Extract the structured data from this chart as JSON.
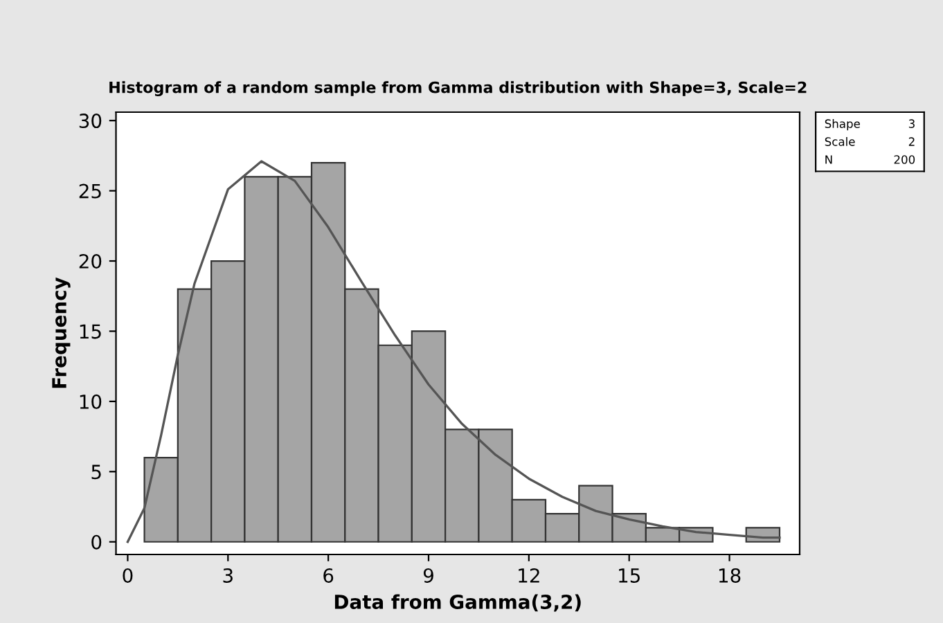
{
  "chart_data": {
    "type": "histogram",
    "title": "Histogram of a random sample from Gamma distribution with Shape=3, Scale=2",
    "xlabel": "Data from Gamma(3,2)",
    "ylabel": "Frequency",
    "bins": [
      0.5,
      1.5,
      2.5,
      3.5,
      4.5,
      5.5,
      6.5,
      7.5,
      8.5,
      9.5,
      10.5,
      11.5,
      12.5,
      13.5,
      14.5,
      15.5,
      16.5,
      17.5,
      18.5,
      19.5
    ],
    "values": [
      6,
      18,
      20,
      26,
      26,
      27,
      18,
      14,
      15,
      8,
      8,
      3,
      2,
      4,
      2,
      1,
      1,
      0,
      1
    ],
    "color": "#a5a5a5",
    "series": [
      {
        "type": "line",
        "color": "#555555",
        "x": [
          0,
          0.5,
          1,
          1.5,
          2,
          3,
          4,
          5,
          6,
          7,
          8,
          9,
          10,
          11,
          12,
          13,
          14,
          15,
          16,
          17,
          18,
          19,
          19.5
        ],
        "values": [
          0,
          2.4,
          7.6,
          13.3,
          18.4,
          25.1,
          27.1,
          25.7,
          22.4,
          18.5,
          14.7,
          11.2,
          8.4,
          6.2,
          4.5,
          3.2,
          2.2,
          1.6,
          1.1,
          0.7,
          0.5,
          0.3,
          0.3
        ]
      }
    ],
    "xlim": [
      -0.35,
      20.1
    ],
    "ylim": [
      -0.9,
      30.6
    ],
    "xticks": [
      0,
      3,
      6,
      9,
      12,
      15,
      18
    ],
    "yticks": [
      0,
      5,
      10,
      15,
      20,
      25,
      30
    ],
    "grid": false,
    "legend": false,
    "annotations": [
      "Shape",
      "3",
      "Scale",
      "2",
      "N",
      "200"
    ]
  }
}
